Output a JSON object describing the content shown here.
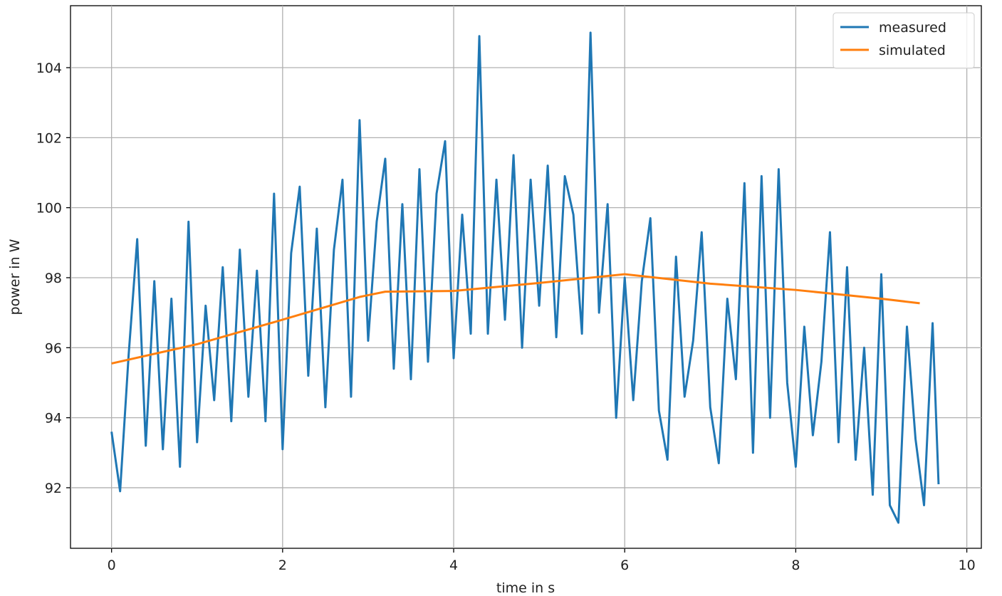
{
  "chart_data": {
    "type": "line",
    "xlabel": "time in s",
    "ylabel": "power in W",
    "xlim": [
      -0.48,
      10.17
    ],
    "ylim": [
      90.27,
      105.77
    ],
    "xticks": [
      0,
      2,
      4,
      6,
      8,
      10
    ],
    "yticks": [
      92,
      94,
      96,
      98,
      100,
      102,
      104
    ],
    "grid": true,
    "legend": "upper right",
    "series": [
      {
        "name": "measured",
        "color": "#1f77b4",
        "x": [
          0.0,
          0.1,
          0.2,
          0.3,
          0.4,
          0.5,
          0.6,
          0.7,
          0.8,
          0.9,
          1.0,
          1.1,
          1.2,
          1.3,
          1.4,
          1.5,
          1.6,
          1.7,
          1.8,
          1.9,
          2.0,
          2.1,
          2.2,
          2.3,
          2.4,
          2.5,
          2.6,
          2.7,
          2.8,
          2.9,
          3.0,
          3.1,
          3.2,
          3.3,
          3.4,
          3.5,
          3.6,
          3.7,
          3.8,
          3.9,
          4.0,
          4.1,
          4.2,
          4.3,
          4.4,
          4.5,
          4.6,
          4.7,
          4.8,
          4.9,
          5.0,
          5.1,
          5.2,
          5.3,
          5.4,
          5.5,
          5.6,
          5.7,
          5.8,
          5.9,
          6.0,
          6.1,
          6.2,
          6.3,
          6.4,
          6.5,
          6.6,
          6.7,
          6.8,
          6.9,
          7.0,
          7.1,
          7.2,
          7.3,
          7.4,
          7.5,
          7.6,
          7.7,
          7.8,
          7.9,
          8.0,
          8.1,
          8.2,
          8.3,
          8.4,
          8.5,
          8.6,
          8.7,
          8.8,
          8.9,
          9.0,
          9.1,
          9.2,
          9.3,
          9.4,
          9.5,
          9.6,
          9.67
        ],
        "values": [
          93.6,
          91.9,
          95.8,
          99.1,
          93.2,
          97.9,
          93.1,
          97.4,
          92.6,
          99.6,
          93.3,
          97.2,
          94.5,
          98.3,
          93.9,
          98.8,
          94.6,
          98.2,
          93.9,
          100.4,
          93.1,
          98.7,
          100.6,
          95.2,
          99.4,
          94.3,
          98.8,
          100.8,
          94.6,
          102.5,
          96.2,
          99.6,
          101.4,
          95.4,
          100.1,
          95.1,
          101.1,
          95.6,
          100.4,
          101.9,
          95.7,
          99.8,
          96.4,
          104.9,
          96.4,
          100.8,
          96.8,
          101.5,
          96.0,
          100.8,
          97.2,
          101.2,
          96.3,
          100.9,
          99.8,
          96.4,
          105.0,
          97.0,
          100.1,
          94.0,
          98.0,
          94.5,
          97.9,
          99.7,
          94.2,
          92.8,
          98.6,
          94.6,
          96.2,
          99.3,
          94.3,
          92.7,
          97.4,
          95.1,
          100.7,
          93.0,
          100.9,
          94.0,
          101.1,
          95.0,
          92.6,
          96.6,
          93.5,
          95.6,
          99.3,
          93.3,
          98.3,
          92.8,
          96.0,
          91.8,
          98.1,
          91.5,
          91.0,
          96.6,
          93.4,
          91.5,
          96.7,
          92.1
        ]
      },
      {
        "name": "simulated",
        "color": "#ff7f0e",
        "x": [
          0,
          1,
          2,
          2.9,
          3.2,
          4,
          5,
          6,
          7,
          8,
          9,
          9.45
        ],
        "values": [
          95.55,
          96.1,
          96.8,
          97.45,
          97.6,
          97.62,
          97.85,
          98.1,
          97.83,
          97.65,
          97.4,
          97.27
        ]
      }
    ]
  }
}
